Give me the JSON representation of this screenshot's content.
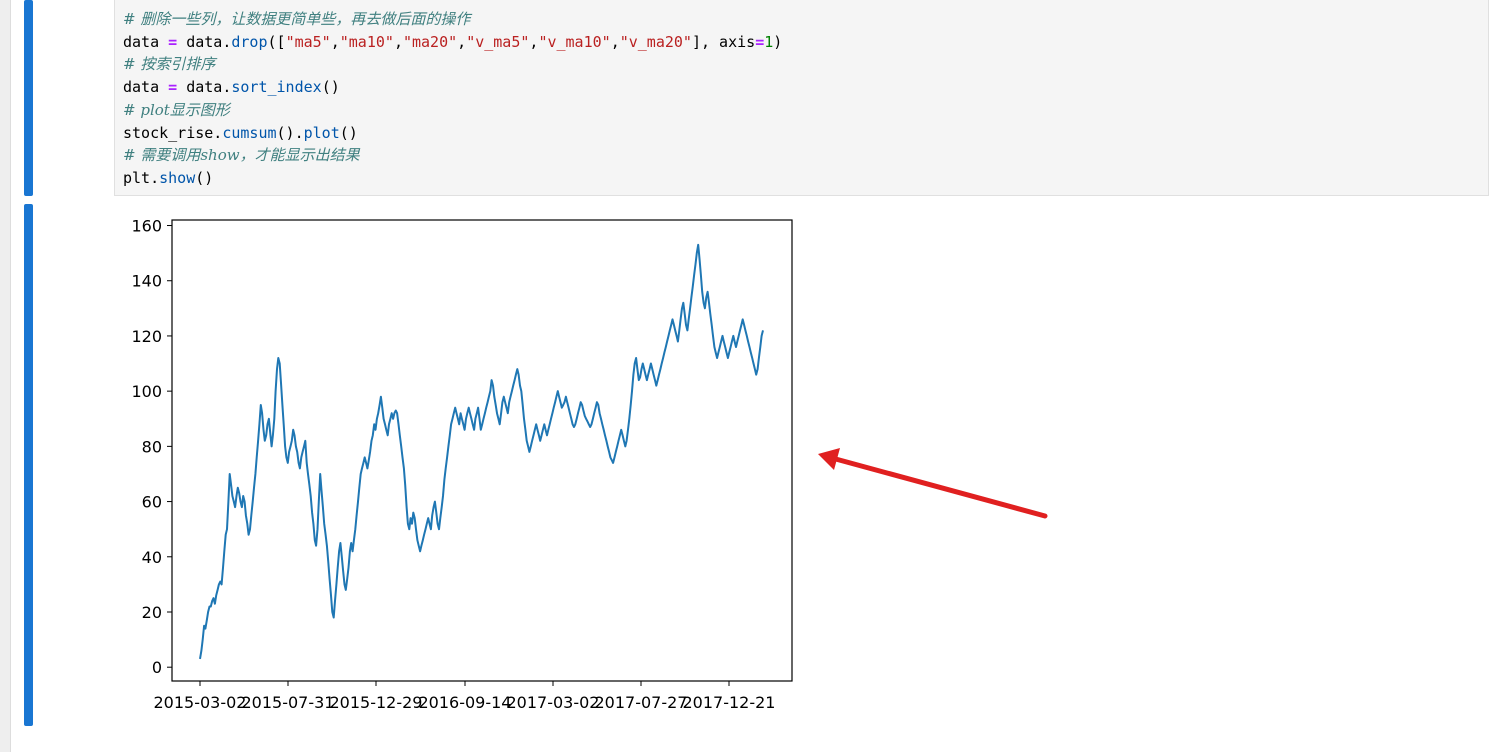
{
  "notebook": {
    "code_cell": {
      "lines": [
        [
          {
            "t": "comment",
            "v": "# 删除一些列，让数据更简单些，再去做后面的操作"
          }
        ],
        [
          {
            "t": "plain",
            "v": "data "
          },
          {
            "t": "op",
            "v": "="
          },
          {
            "t": "plain",
            "v": " data."
          },
          {
            "t": "fn",
            "v": "drop"
          },
          {
            "t": "plain",
            "v": "(["
          },
          {
            "t": "str",
            "v": "\"ma5\""
          },
          {
            "t": "plain",
            "v": ","
          },
          {
            "t": "str",
            "v": "\"ma10\""
          },
          {
            "t": "plain",
            "v": ","
          },
          {
            "t": "str",
            "v": "\"ma20\""
          },
          {
            "t": "plain",
            "v": ","
          },
          {
            "t": "str",
            "v": "\"v_ma5\""
          },
          {
            "t": "plain",
            "v": ","
          },
          {
            "t": "str",
            "v": "\"v_ma10\""
          },
          {
            "t": "plain",
            "v": ","
          },
          {
            "t": "str",
            "v": "\"v_ma20\""
          },
          {
            "t": "plain",
            "v": "], axis"
          },
          {
            "t": "op",
            "v": "="
          },
          {
            "t": "num",
            "v": "1"
          },
          {
            "t": "plain",
            "v": ")"
          }
        ],
        [
          {
            "t": "comment",
            "v": "# 按索引排序"
          }
        ],
        [
          {
            "t": "plain",
            "v": "data "
          },
          {
            "t": "op",
            "v": "="
          },
          {
            "t": "plain",
            "v": " data."
          },
          {
            "t": "fn",
            "v": "sort_index"
          },
          {
            "t": "plain",
            "v": "()"
          }
        ],
        [
          {
            "t": "comment",
            "v": "# plot显示图形"
          }
        ],
        [
          {
            "t": "plain",
            "v": "stock_rise."
          },
          {
            "t": "fn",
            "v": "cumsum"
          },
          {
            "t": "plain",
            "v": "()."
          },
          {
            "t": "fn",
            "v": "plot"
          },
          {
            "t": "plain",
            "v": "()"
          }
        ],
        [
          {
            "t": "comment",
            "v": "# 需要调用show，才能显示出结果"
          }
        ],
        [
          {
            "t": "plain",
            "v": "plt."
          },
          {
            "t": "fn",
            "v": "show"
          },
          {
            "t": "plain",
            "v": "()"
          }
        ]
      ]
    },
    "colors": {
      "cell_bar": "#1976d2",
      "line": "#1f77b4",
      "arrow": "#e02020"
    },
    "annotation": {
      "type": "arrow",
      "color": "#e02020",
      "points_to": "chart"
    }
  },
  "chart_data": {
    "type": "line",
    "title": "",
    "xlabel": "",
    "ylabel": "",
    "ylim": [
      -5,
      162
    ],
    "yticks": [
      0,
      20,
      40,
      60,
      80,
      100,
      120,
      140,
      160
    ],
    "xticks": [
      "2015-03-02",
      "2015-07-31",
      "2015-12-29",
      "2016-09-14",
      "2017-03-02",
      "2017-07-27",
      "2017-12-21"
    ],
    "grid": false,
    "series": [
      {
        "values": [
          3,
          6,
          10,
          15,
          14,
          17,
          20,
          22,
          22,
          24,
          25,
          23,
          26,
          28,
          30,
          31,
          30,
          36,
          42,
          48,
          50,
          60,
          70,
          66,
          62,
          60,
          58,
          62,
          65,
          63,
          60,
          58,
          62,
          60,
          55,
          52,
          48,
          50,
          55,
          60,
          65,
          70,
          76,
          82,
          88,
          95,
          92,
          86,
          82,
          84,
          88,
          90,
          85,
          80,
          84,
          90,
          100,
          108,
          112,
          110,
          103,
          95,
          88,
          80,
          76,
          74,
          78,
          80,
          82,
          86,
          84,
          80,
          78,
          74,
          72,
          76,
          78,
          80,
          82,
          74,
          70,
          66,
          62,
          56,
          52,
          46,
          44,
          50,
          60,
          70,
          64,
          58,
          52,
          48,
          44,
          38,
          32,
          26,
          20,
          18,
          24,
          30,
          36,
          42,
          45,
          40,
          35,
          30,
          28,
          32,
          36,
          42,
          45,
          42,
          46,
          50,
          55,
          60,
          65,
          70,
          72,
          74,
          76,
          74,
          72,
          75,
          78,
          82,
          84,
          88,
          86,
          90,
          92,
          95,
          98,
          94,
          90,
          88,
          86,
          84,
          88,
          90,
          92,
          90,
          92,
          93,
          92,
          88,
          84,
          80,
          76,
          72,
          66,
          58,
          52,
          50,
          54,
          52,
          56,
          54,
          50,
          46,
          44,
          42,
          44,
          46,
          48,
          50,
          52,
          54,
          52,
          50,
          55,
          58,
          60,
          56,
          52,
          50,
          54,
          58,
          62,
          68,
          72,
          76,
          80,
          84,
          88,
          90,
          92,
          94,
          92,
          90,
          88,
          92,
          90,
          88,
          86,
          90,
          92,
          94,
          92,
          90,
          88,
          86,
          90,
          92,
          94,
          90,
          86,
          88,
          90,
          92,
          94,
          96,
          98,
          100,
          104,
          102,
          98,
          95,
          92,
          90,
          88,
          92,
          96,
          98,
          96,
          94,
          92,
          96,
          98,
          100,
          102,
          104,
          106,
          108,
          106,
          102,
          100,
          95,
          90,
          86,
          82,
          80,
          78,
          80,
          82,
          84,
          86,
          88,
          86,
          84,
          82,
          84,
          86,
          88,
          86,
          84,
          86,
          88,
          90,
          92,
          94,
          96,
          98,
          100,
          98,
          96,
          94,
          95,
          96,
          98,
          96,
          94,
          92,
          90,
          88,
          87,
          88,
          90,
          92,
          94,
          96,
          95,
          93,
          91,
          90,
          89,
          88,
          87,
          88,
          90,
          92,
          94,
          96,
          95,
          92,
          90,
          88,
          86,
          84,
          82,
          80,
          78,
          76,
          75,
          74,
          76,
          78,
          80,
          82,
          84,
          86,
          84,
          82,
          80,
          82,
          86,
          90,
          95,
          100,
          106,
          110,
          112,
          108,
          104,
          105,
          108,
          110,
          108,
          106,
          104,
          106,
          108,
          110,
          108,
          106,
          104,
          102,
          104,
          106,
          108,
          110,
          112,
          114,
          116,
          118,
          120,
          122,
          124,
          126,
          124,
          122,
          120,
          118,
          122,
          126,
          130,
          132,
          128,
          124,
          122,
          126,
          130,
          134,
          138,
          142,
          146,
          150,
          153,
          148,
          142,
          136,
          132,
          130,
          134,
          136,
          132,
          128,
          124,
          120,
          116,
          114,
          112,
          114,
          116,
          118,
          120,
          118,
          116,
          114,
          112,
          114,
          116,
          118,
          120,
          118,
          116,
          118,
          120,
          122,
          124,
          126,
          124,
          122,
          120,
          118,
          116,
          114,
          112,
          110,
          108,
          106,
          108,
          112,
          116,
          120,
          122
        ]
      }
    ]
  }
}
